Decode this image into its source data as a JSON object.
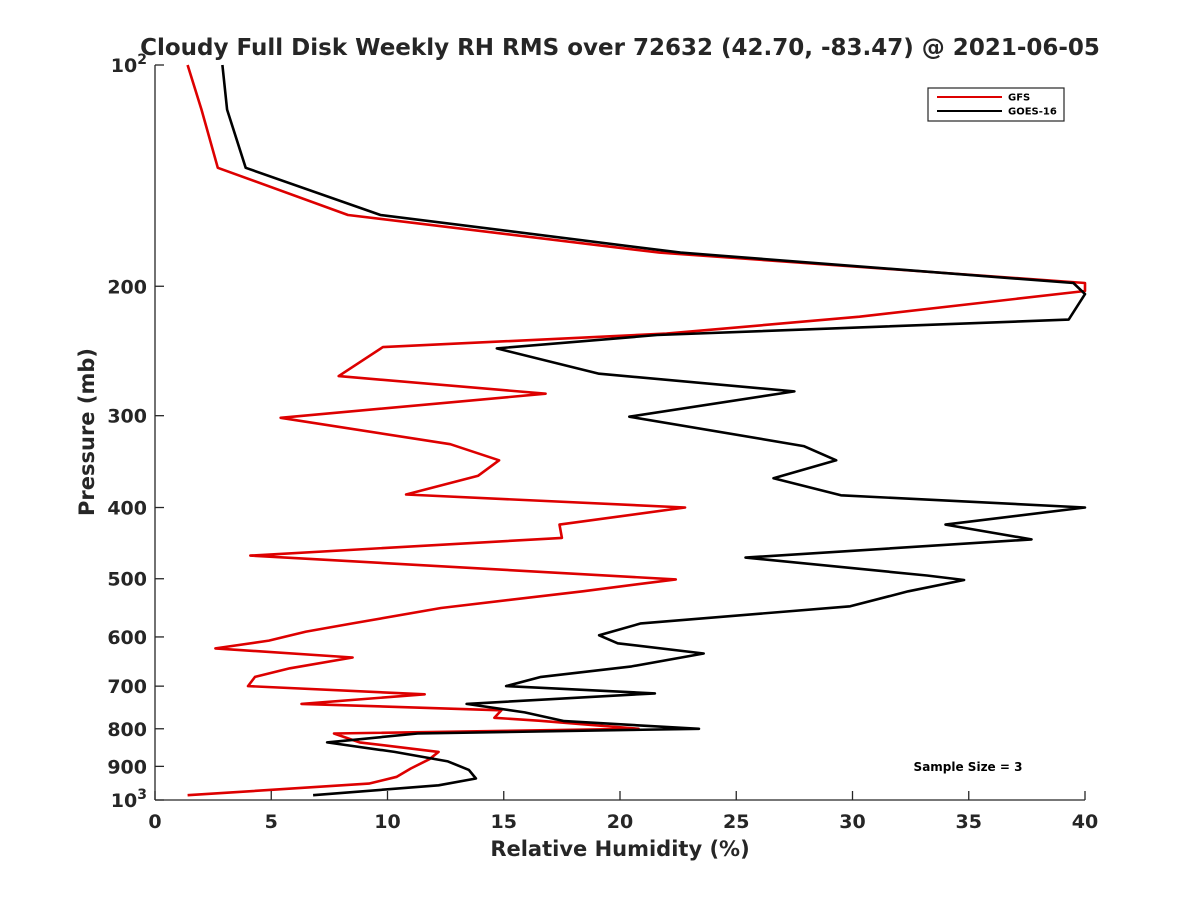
{
  "chart_data": {
    "type": "line",
    "title": "Cloudy Full Disk Weekly RH RMS over 72632 (42.70, -83.47) @ 2021-06-05",
    "xlabel": "Relative Humidity (%)",
    "ylabel": "Pressure (mb)",
    "xlim": [
      0,
      40
    ],
    "ylim": [
      100,
      1000
    ],
    "y_scale": "log",
    "y_reversed": true,
    "x_ticks": [
      "0",
      "5",
      "10",
      "15",
      "20",
      "25",
      "30",
      "35",
      "40"
    ],
    "y_ticks": [
      {
        "value": 100,
        "base": "10",
        "exp": "2"
      },
      {
        "value": 200,
        "label": "200"
      },
      {
        "value": 300,
        "label": "300"
      },
      {
        "value": 400,
        "label": "400"
      },
      {
        "value": 500,
        "label": "500"
      },
      {
        "value": 600,
        "label": "600"
      },
      {
        "value": 700,
        "label": "700"
      },
      {
        "value": 800,
        "label": "800"
      },
      {
        "value": 900,
        "label": "900"
      },
      {
        "value": 1000,
        "base": "10",
        "exp": "3"
      }
    ],
    "grid": false,
    "legend_position": "top-right",
    "annotation": "Sample Size = 3",
    "series": [
      {
        "name": "GFS",
        "color": "#dd0000",
        "points": [
          [
            1.4,
            100
          ],
          [
            2.0,
            115
          ],
          [
            2.7,
            138
          ],
          [
            8.3,
            160
          ],
          [
            21.7,
            180
          ],
          [
            40.0,
            198
          ],
          [
            40.0,
            203
          ],
          [
            30.3,
            220
          ],
          [
            22.0,
            232
          ],
          [
            9.8,
            242
          ],
          [
            7.9,
            265
          ],
          [
            16.8,
            280
          ],
          [
            5.4,
            302
          ],
          [
            12.7,
            328
          ],
          [
            14.8,
            345
          ],
          [
            13.9,
            362
          ],
          [
            10.8,
            384
          ],
          [
            22.8,
            400
          ],
          [
            17.4,
            422
          ],
          [
            17.5,
            440
          ],
          [
            4.1,
            465
          ],
          [
            22.4,
            501
          ],
          [
            18.4,
            520
          ],
          [
            12.3,
            548
          ],
          [
            8.5,
            575
          ],
          [
            6.5,
            590
          ],
          [
            4.9,
            607
          ],
          [
            2.6,
            622
          ],
          [
            8.5,
            640
          ],
          [
            5.8,
            662
          ],
          [
            4.3,
            680
          ],
          [
            4.0,
            700
          ],
          [
            11.6,
            718
          ],
          [
            6.3,
            740
          ],
          [
            14.9,
            755
          ],
          [
            14.6,
            773
          ],
          [
            16.5,
            780
          ],
          [
            20.8,
            800
          ],
          [
            7.7,
            812
          ],
          [
            8.8,
            835
          ],
          [
            12.2,
            860
          ],
          [
            11.8,
            880
          ],
          [
            11.0,
            906
          ],
          [
            10.4,
            930
          ],
          [
            9.2,
            950
          ],
          [
            1.4,
            985
          ]
        ]
      },
      {
        "name": "GOES-16",
        "color": "#000000",
        "points": [
          [
            2.9,
            100
          ],
          [
            3.1,
            115
          ],
          [
            3.9,
            138
          ],
          [
            9.7,
            160
          ],
          [
            22.6,
            180
          ],
          [
            39.5,
            198
          ],
          [
            40.0,
            205
          ],
          [
            39.3,
            222
          ],
          [
            21.6,
            233
          ],
          [
            14.7,
            243
          ],
          [
            19.1,
            263
          ],
          [
            27.5,
            278
          ],
          [
            20.4,
            301
          ],
          [
            27.9,
            330
          ],
          [
            29.3,
            345
          ],
          [
            26.6,
            365
          ],
          [
            29.5,
            385
          ],
          [
            40.0,
            400
          ],
          [
            34.0,
            422
          ],
          [
            37.7,
            442
          ],
          [
            25.4,
            468
          ],
          [
            33.2,
            495
          ],
          [
            34.8,
            502
          ],
          [
            32.4,
            520
          ],
          [
            29.9,
            545
          ],
          [
            20.9,
            575
          ],
          [
            19.1,
            597
          ],
          [
            19.9,
            612
          ],
          [
            23.6,
            632
          ],
          [
            20.5,
            658
          ],
          [
            16.6,
            680
          ],
          [
            15.1,
            700
          ],
          [
            21.5,
            716
          ],
          [
            13.4,
            740
          ],
          [
            15.9,
            760
          ],
          [
            17.6,
            781
          ],
          [
            23.4,
            800
          ],
          [
            11.3,
            812
          ],
          [
            7.4,
            835
          ],
          [
            10.3,
            860
          ],
          [
            12.6,
            886
          ],
          [
            13.5,
            910
          ],
          [
            13.8,
            935
          ],
          [
            12.2,
            955
          ],
          [
            6.8,
            985
          ]
        ]
      }
    ]
  }
}
